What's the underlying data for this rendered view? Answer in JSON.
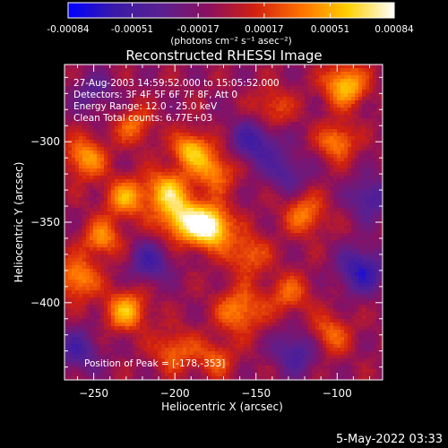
{
  "chart_data": {
    "type": "heatmap",
    "title": "Reconstructed RHESSI Image",
    "xlabel": "Heliocentric X (arcsec)",
    "ylabel": "Heliocentric Y (arcsec)",
    "xlim": [
      -268,
      -72
    ],
    "ylim": [
      -448,
      -252
    ],
    "x_ticks": [
      -250,
      -200,
      -150,
      -100
    ],
    "y_ticks": [
      -300,
      -350,
      -400
    ],
    "colorbar": {
      "range": [
        -0.00084,
        0.00084
      ],
      "ticks": [
        "-0.00084",
        "-0.00051",
        "-0.00017",
        "0.00017",
        "0.00051",
        "0.00084"
      ],
      "units_label": "(photons cm⁻² s⁻¹ asec⁻²)",
      "colormap": [
        "#0000ff",
        "#3a1aa8",
        "#5a2090",
        "#8a1060",
        "#d02010",
        "#ff7000",
        "#ffd000",
        "#ffffff"
      ]
    },
    "peak": {
      "x": -178,
      "y": -353,
      "value": 0.00084
    },
    "blobs": [
      {
        "x": -178,
        "y": -353,
        "amp": 1.0,
        "s": 9
      },
      {
        "x": -196,
        "y": -348,
        "amp": 0.75,
        "s": 10
      },
      {
        "x": -205,
        "y": -330,
        "amp": 0.65,
        "s": 9
      },
      {
        "x": -190,
        "y": -305,
        "amp": 0.7,
        "s": 8
      },
      {
        "x": -175,
        "y": -318,
        "amp": 0.55,
        "s": 9
      },
      {
        "x": -230,
        "y": -335,
        "amp": 0.6,
        "s": 9
      },
      {
        "x": -255,
        "y": -310,
        "amp": 0.6,
        "s": 9
      },
      {
        "x": -245,
        "y": -360,
        "amp": 0.55,
        "s": 8
      },
      {
        "x": -260,
        "y": -385,
        "amp": 0.6,
        "s": 9
      },
      {
        "x": -230,
        "y": -405,
        "amp": 0.65,
        "s": 9
      },
      {
        "x": -160,
        "y": -405,
        "amp": 0.55,
        "s": 10
      },
      {
        "x": -155,
        "y": -370,
        "amp": 0.45,
        "s": 9
      },
      {
        "x": -120,
        "y": -345,
        "amp": 0.5,
        "s": 9
      },
      {
        "x": -95,
        "y": -265,
        "amp": 0.75,
        "s": 9
      },
      {
        "x": -100,
        "y": -300,
        "amp": 0.55,
        "s": 8
      },
      {
        "x": -140,
        "y": -280,
        "amp": 0.4,
        "s": 9
      },
      {
        "x": -200,
        "y": -430,
        "amp": 0.45,
        "s": 9
      },
      {
        "x": -175,
        "y": -435,
        "amp": 0.4,
        "s": 8
      },
      {
        "x": -105,
        "y": -420,
        "amp": 0.45,
        "s": 9
      },
      {
        "x": -130,
        "y": -395,
        "amp": 0.4,
        "s": 9
      },
      {
        "x": -225,
        "y": -290,
        "amp": 0.45,
        "s": 8
      },
      {
        "x": -85,
        "y": -380,
        "amp": -0.6,
        "s": 10
      },
      {
        "x": -150,
        "y": -300,
        "amp": -0.5,
        "s": 11
      },
      {
        "x": -125,
        "y": -430,
        "amp": -0.45,
        "s": 10
      },
      {
        "x": -260,
        "y": -430,
        "amp": -0.4,
        "s": 10
      },
      {
        "x": -215,
        "y": -375,
        "amp": -0.45,
        "s": 9
      },
      {
        "x": -130,
        "y": -320,
        "amp": -0.35,
        "s": 9
      },
      {
        "x": -80,
        "y": -335,
        "amp": -0.45,
        "s": 9
      },
      {
        "x": -250,
        "y": -270,
        "amp": -0.3,
        "s": 9
      }
    ]
  },
  "annotations": {
    "time_range": "27-Aug-2003 14:59:52.000 to 15:05:52.000",
    "detectors": "Detectors: 3F 4F 5F 6F 7F 8F, Att 0",
    "energy_range": "Energy Range: 12.0 - 25.0 keV",
    "clean_counts": "Clean     Total counts: 6.77E+03",
    "peak_position": "Position of Peak = [-178,-353]"
  },
  "timestamp": "5-May-2022 03:33"
}
